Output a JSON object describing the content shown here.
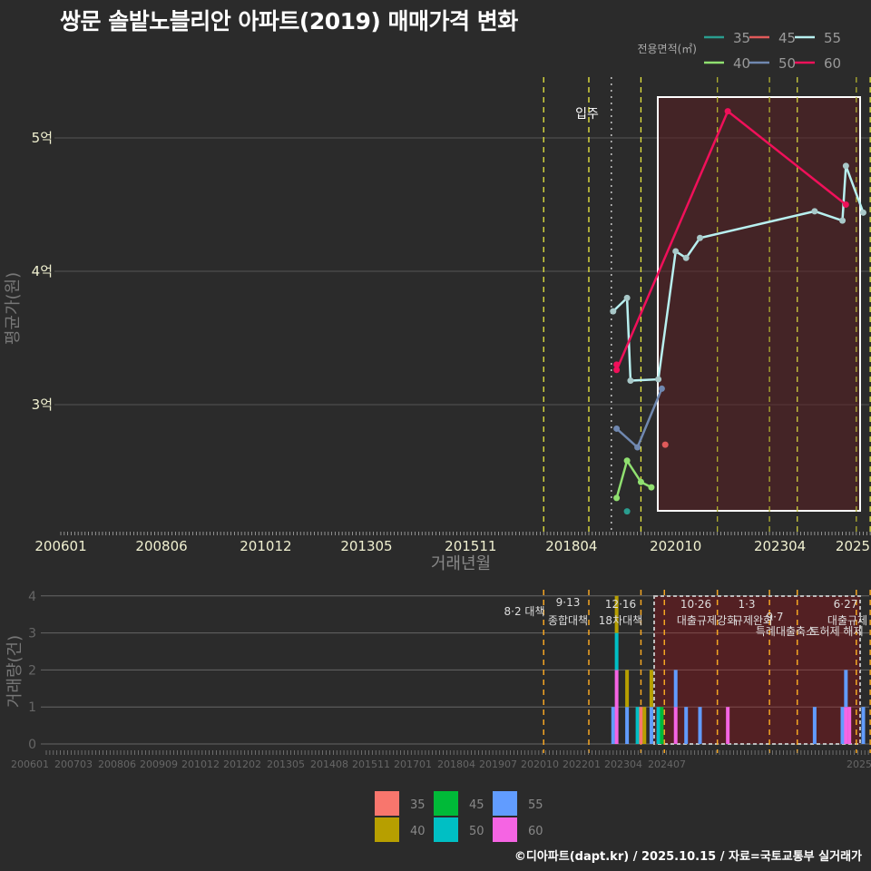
{
  "title": "쌍문 솔밭노블리안 아파트(2019) 매매가격 변화",
  "credit": "©디아파트(dapt.kr) / 2025.10.15 / 자료=국토교통부 실거래가",
  "top_legend": {
    "title": "전용면적(㎡)",
    "items": [
      {
        "label": "35",
        "color": "#2a9d8f"
      },
      {
        "label": "45",
        "color": "#e05a5a"
      },
      {
        "label": "55",
        "color": "#b8f0f0"
      },
      {
        "label": "40",
        "color": "#90e070"
      },
      {
        "label": "50",
        "color": "#7088b0"
      },
      {
        "label": "60",
        "color": "#f0105a"
      }
    ]
  },
  "bottom_legend": {
    "items": [
      {
        "label": "35",
        "color": "#f8766d"
      },
      {
        "label": "40",
        "color": "#b79f00"
      },
      {
        "label": "45",
        "color": "#00ba38"
      },
      {
        "label": "50",
        "color": "#00bfc4"
      },
      {
        "label": "55",
        "color": "#619cff"
      },
      {
        "label": "60",
        "color": "#f564e3"
      }
    ]
  },
  "chart_data": [
    {
      "type": "line",
      "title": "쌍문 솔밭노블리안 아파트(2019) 매매가격 변화",
      "xlabel": "거래년월",
      "ylabel": "평균가(원)",
      "x_tick_labels": [
        "200601",
        "200806",
        "201012",
        "201305",
        "201511",
        "201804",
        "202010",
        "202304",
        "2025"
      ],
      "y_tick_labels": [
        "3억",
        "4억",
        "5억"
      ],
      "ylim": [
        2.1,
        5.5
      ],
      "grid": true,
      "legend_title": "전용면적(㎡)",
      "legend_position": "top-right",
      "annotations": [
        {
          "text": "입주",
          "x": "201904"
        }
      ],
      "series": [
        {
          "name": "35",
          "points": [
            [
              "201908",
              2.2
            ]
          ]
        },
        {
          "name": "40",
          "points": [
            [
              "201905",
              2.3
            ],
            [
              "201908",
              2.58
            ],
            [
              "201912",
              2.42
            ],
            [
              "202003",
              2.38
            ]
          ]
        },
        {
          "name": "45",
          "points": [
            [
              "202007",
              2.7
            ]
          ]
        },
        {
          "name": "50",
          "points": [
            [
              "201905",
              2.82
            ],
            [
              "201911",
              2.68
            ],
            [
              "202006",
              3.12
            ]
          ]
        },
        {
          "name": "55",
          "points": [
            [
              "201904",
              3.7
            ],
            [
              "201908",
              3.8
            ],
            [
              "201909",
              3.18
            ],
            [
              "202005",
              3.19
            ],
            [
              "202010",
              4.15
            ],
            [
              "202101",
              4.1
            ],
            [
              "202105",
              4.25
            ],
            [
              "202402",
              4.45
            ],
            [
              "202410",
              4.38
            ],
            [
              "202411",
              4.79
            ],
            [
              "202504",
              4.44
            ]
          ]
        },
        {
          "name": "60",
          "points": [
            [
              "201905",
              3.3
            ],
            [
              "201905",
              3.26
            ],
            [
              "202201",
              5.2
            ],
            [
              "202411",
              4.5
            ]
          ]
        }
      ]
    },
    {
      "type": "bar",
      "title": "",
      "xlabel": "",
      "ylabel": "거래량(건)",
      "x_tick_labels": [
        "200601",
        "200703",
        "200806",
        "200909",
        "201012",
        "201202",
        "201305",
        "201408",
        "201511",
        "201701",
        "201804",
        "201907",
        "202010",
        "202201",
        "202304",
        "202407",
        "2025"
      ],
      "y_tick_labels": [
        "0",
        "1",
        "2",
        "3",
        "4"
      ],
      "ylim": [
        0,
        4
      ],
      "stacked": true,
      "annotations": [
        {
          "text": "8·2 대책",
          "x": "201708"
        },
        {
          "text": "9·13 종합대책",
          "x": "201809"
        },
        {
          "text": "12·16 18차대책",
          "x": "201912"
        },
        {
          "text": "10·26 대출규제강화",
          "x": "202110"
        },
        {
          "text": "1·3 규제완화",
          "x": "202301"
        },
        {
          "text": "9·7 특례대출축소",
          "x": "202309"
        },
        {
          "text": "토허제 해제",
          "x": "202502"
        },
        {
          "text": "6·27 대출규제",
          "x": "202506"
        }
      ],
      "bars": [
        {
          "x": "201904",
          "segments": [
            {
              "area": "55",
              "count": 1
            }
          ]
        },
        {
          "x": "201905",
          "segments": [
            {
              "area": "60",
              "count": 2
            },
            {
              "area": "50",
              "count": 1
            },
            {
              "area": "40",
              "count": 1
            }
          ]
        },
        {
          "x": "201908",
          "segments": [
            {
              "area": "55",
              "count": 1
            },
            {
              "area": "40",
              "count": 1
            }
          ]
        },
        {
          "x": "201911",
          "segments": [
            {
              "area": "50",
              "count": 1
            }
          ]
        },
        {
          "x": "201912",
          "segments": [
            {
              "area": "35",
              "count": 1
            }
          ]
        },
        {
          "x": "202001",
          "segments": [
            {
              "area": "40",
              "count": 1
            }
          ]
        },
        {
          "x": "202003",
          "segments": [
            {
              "area": "55",
              "count": 1
            },
            {
              "area": "40",
              "count": 1
            }
          ]
        },
        {
          "x": "202005",
          "segments": [
            {
              "area": "50",
              "count": 1
            }
          ]
        },
        {
          "x": "202006",
          "segments": [
            {
              "area": "45",
              "count": 1
            }
          ]
        },
        {
          "x": "202010",
          "segments": [
            {
              "area": "60",
              "count": 1
            },
            {
              "area": "55",
              "count": 1
            }
          ]
        },
        {
          "x": "202101",
          "segments": [
            {
              "area": "55",
              "count": 1
            }
          ]
        },
        {
          "x": "202105",
          "segments": [
            {
              "area": "55",
              "count": 1
            }
          ]
        },
        {
          "x": "202201",
          "segments": [
            {
              "area": "60",
              "count": 1
            }
          ]
        },
        {
          "x": "202402",
          "segments": [
            {
              "area": "55",
              "count": 1
            }
          ]
        },
        {
          "x": "202410",
          "segments": [
            {
              "area": "55",
              "count": 1
            }
          ]
        },
        {
          "x": "202411",
          "segments": [
            {
              "area": "60",
              "count": 1
            },
            {
              "area": "55",
              "count": 1
            }
          ]
        },
        {
          "x": "202412",
          "segments": [
            {
              "area": "60",
              "count": 1
            }
          ]
        },
        {
          "x": "202504",
          "segments": [
            {
              "area": "55",
              "count": 1
            }
          ]
        }
      ]
    }
  ]
}
